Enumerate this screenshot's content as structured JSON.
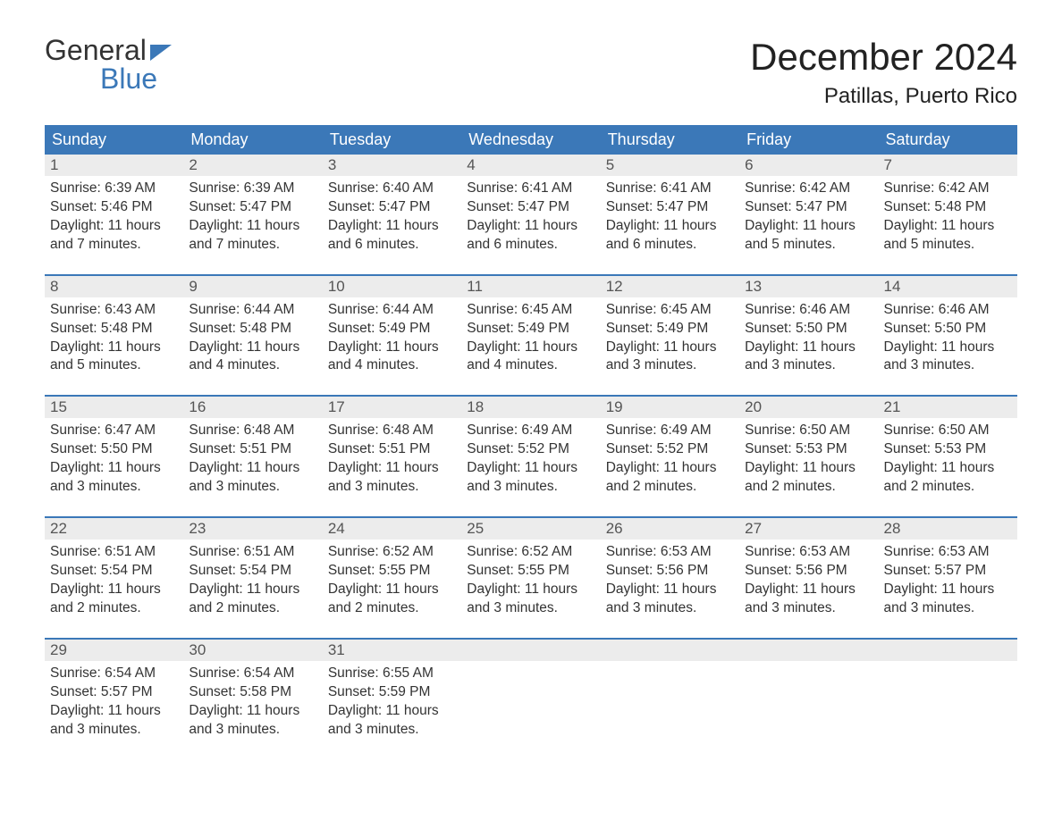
{
  "logo": {
    "word1": "General",
    "word2": "Blue"
  },
  "title": "December 2024",
  "location": "Patillas, Puerto Rico",
  "colors": {
    "brand_blue": "#3b78b8",
    "header_text": "#ffffff",
    "day_num_bg": "#ececec",
    "day_num_fg": "#555555",
    "body_text": "#333333",
    "title_text": "#222222"
  },
  "day_names": [
    "Sunday",
    "Monday",
    "Tuesday",
    "Wednesday",
    "Thursday",
    "Friday",
    "Saturday"
  ],
  "weeks": [
    [
      {
        "n": "1",
        "sunrise": "Sunrise: 6:39 AM",
        "sunset": "Sunset: 5:46 PM",
        "d1": "Daylight: 11 hours",
        "d2": "and 7 minutes."
      },
      {
        "n": "2",
        "sunrise": "Sunrise: 6:39 AM",
        "sunset": "Sunset: 5:47 PM",
        "d1": "Daylight: 11 hours",
        "d2": "and 7 minutes."
      },
      {
        "n": "3",
        "sunrise": "Sunrise: 6:40 AM",
        "sunset": "Sunset: 5:47 PM",
        "d1": "Daylight: 11 hours",
        "d2": "and 6 minutes."
      },
      {
        "n": "4",
        "sunrise": "Sunrise: 6:41 AM",
        "sunset": "Sunset: 5:47 PM",
        "d1": "Daylight: 11 hours",
        "d2": "and 6 minutes."
      },
      {
        "n": "5",
        "sunrise": "Sunrise: 6:41 AM",
        "sunset": "Sunset: 5:47 PM",
        "d1": "Daylight: 11 hours",
        "d2": "and 6 minutes."
      },
      {
        "n": "6",
        "sunrise": "Sunrise: 6:42 AM",
        "sunset": "Sunset: 5:47 PM",
        "d1": "Daylight: 11 hours",
        "d2": "and 5 minutes."
      },
      {
        "n": "7",
        "sunrise": "Sunrise: 6:42 AM",
        "sunset": "Sunset: 5:48 PM",
        "d1": "Daylight: 11 hours",
        "d2": "and 5 minutes."
      }
    ],
    [
      {
        "n": "8",
        "sunrise": "Sunrise: 6:43 AM",
        "sunset": "Sunset: 5:48 PM",
        "d1": "Daylight: 11 hours",
        "d2": "and 5 minutes."
      },
      {
        "n": "9",
        "sunrise": "Sunrise: 6:44 AM",
        "sunset": "Sunset: 5:48 PM",
        "d1": "Daylight: 11 hours",
        "d2": "and 4 minutes."
      },
      {
        "n": "10",
        "sunrise": "Sunrise: 6:44 AM",
        "sunset": "Sunset: 5:49 PM",
        "d1": "Daylight: 11 hours",
        "d2": "and 4 minutes."
      },
      {
        "n": "11",
        "sunrise": "Sunrise: 6:45 AM",
        "sunset": "Sunset: 5:49 PM",
        "d1": "Daylight: 11 hours",
        "d2": "and 4 minutes."
      },
      {
        "n": "12",
        "sunrise": "Sunrise: 6:45 AM",
        "sunset": "Sunset: 5:49 PM",
        "d1": "Daylight: 11 hours",
        "d2": "and 3 minutes."
      },
      {
        "n": "13",
        "sunrise": "Sunrise: 6:46 AM",
        "sunset": "Sunset: 5:50 PM",
        "d1": "Daylight: 11 hours",
        "d2": "and 3 minutes."
      },
      {
        "n": "14",
        "sunrise": "Sunrise: 6:46 AM",
        "sunset": "Sunset: 5:50 PM",
        "d1": "Daylight: 11 hours",
        "d2": "and 3 minutes."
      }
    ],
    [
      {
        "n": "15",
        "sunrise": "Sunrise: 6:47 AM",
        "sunset": "Sunset: 5:50 PM",
        "d1": "Daylight: 11 hours",
        "d2": "and 3 minutes."
      },
      {
        "n": "16",
        "sunrise": "Sunrise: 6:48 AM",
        "sunset": "Sunset: 5:51 PM",
        "d1": "Daylight: 11 hours",
        "d2": "and 3 minutes."
      },
      {
        "n": "17",
        "sunrise": "Sunrise: 6:48 AM",
        "sunset": "Sunset: 5:51 PM",
        "d1": "Daylight: 11 hours",
        "d2": "and 3 minutes."
      },
      {
        "n": "18",
        "sunrise": "Sunrise: 6:49 AM",
        "sunset": "Sunset: 5:52 PM",
        "d1": "Daylight: 11 hours",
        "d2": "and 3 minutes."
      },
      {
        "n": "19",
        "sunrise": "Sunrise: 6:49 AM",
        "sunset": "Sunset: 5:52 PM",
        "d1": "Daylight: 11 hours",
        "d2": "and 2 minutes."
      },
      {
        "n": "20",
        "sunrise": "Sunrise: 6:50 AM",
        "sunset": "Sunset: 5:53 PM",
        "d1": "Daylight: 11 hours",
        "d2": "and 2 minutes."
      },
      {
        "n": "21",
        "sunrise": "Sunrise: 6:50 AM",
        "sunset": "Sunset: 5:53 PM",
        "d1": "Daylight: 11 hours",
        "d2": "and 2 minutes."
      }
    ],
    [
      {
        "n": "22",
        "sunrise": "Sunrise: 6:51 AM",
        "sunset": "Sunset: 5:54 PM",
        "d1": "Daylight: 11 hours",
        "d2": "and 2 minutes."
      },
      {
        "n": "23",
        "sunrise": "Sunrise: 6:51 AM",
        "sunset": "Sunset: 5:54 PM",
        "d1": "Daylight: 11 hours",
        "d2": "and 2 minutes."
      },
      {
        "n": "24",
        "sunrise": "Sunrise: 6:52 AM",
        "sunset": "Sunset: 5:55 PM",
        "d1": "Daylight: 11 hours",
        "d2": "and 2 minutes."
      },
      {
        "n": "25",
        "sunrise": "Sunrise: 6:52 AM",
        "sunset": "Sunset: 5:55 PM",
        "d1": "Daylight: 11 hours",
        "d2": "and 3 minutes."
      },
      {
        "n": "26",
        "sunrise": "Sunrise: 6:53 AM",
        "sunset": "Sunset: 5:56 PM",
        "d1": "Daylight: 11 hours",
        "d2": "and 3 minutes."
      },
      {
        "n": "27",
        "sunrise": "Sunrise: 6:53 AM",
        "sunset": "Sunset: 5:56 PM",
        "d1": "Daylight: 11 hours",
        "d2": "and 3 minutes."
      },
      {
        "n": "28",
        "sunrise": "Sunrise: 6:53 AM",
        "sunset": "Sunset: 5:57 PM",
        "d1": "Daylight: 11 hours",
        "d2": "and 3 minutes."
      }
    ],
    [
      {
        "n": "29",
        "sunrise": "Sunrise: 6:54 AM",
        "sunset": "Sunset: 5:57 PM",
        "d1": "Daylight: 11 hours",
        "d2": "and 3 minutes."
      },
      {
        "n": "30",
        "sunrise": "Sunrise: 6:54 AM",
        "sunset": "Sunset: 5:58 PM",
        "d1": "Daylight: 11 hours",
        "d2": "and 3 minutes."
      },
      {
        "n": "31",
        "sunrise": "Sunrise: 6:55 AM",
        "sunset": "Sunset: 5:59 PM",
        "d1": "Daylight: 11 hours",
        "d2": "and 3 minutes."
      },
      {
        "empty": true
      },
      {
        "empty": true
      },
      {
        "empty": true
      },
      {
        "empty": true
      }
    ]
  ]
}
